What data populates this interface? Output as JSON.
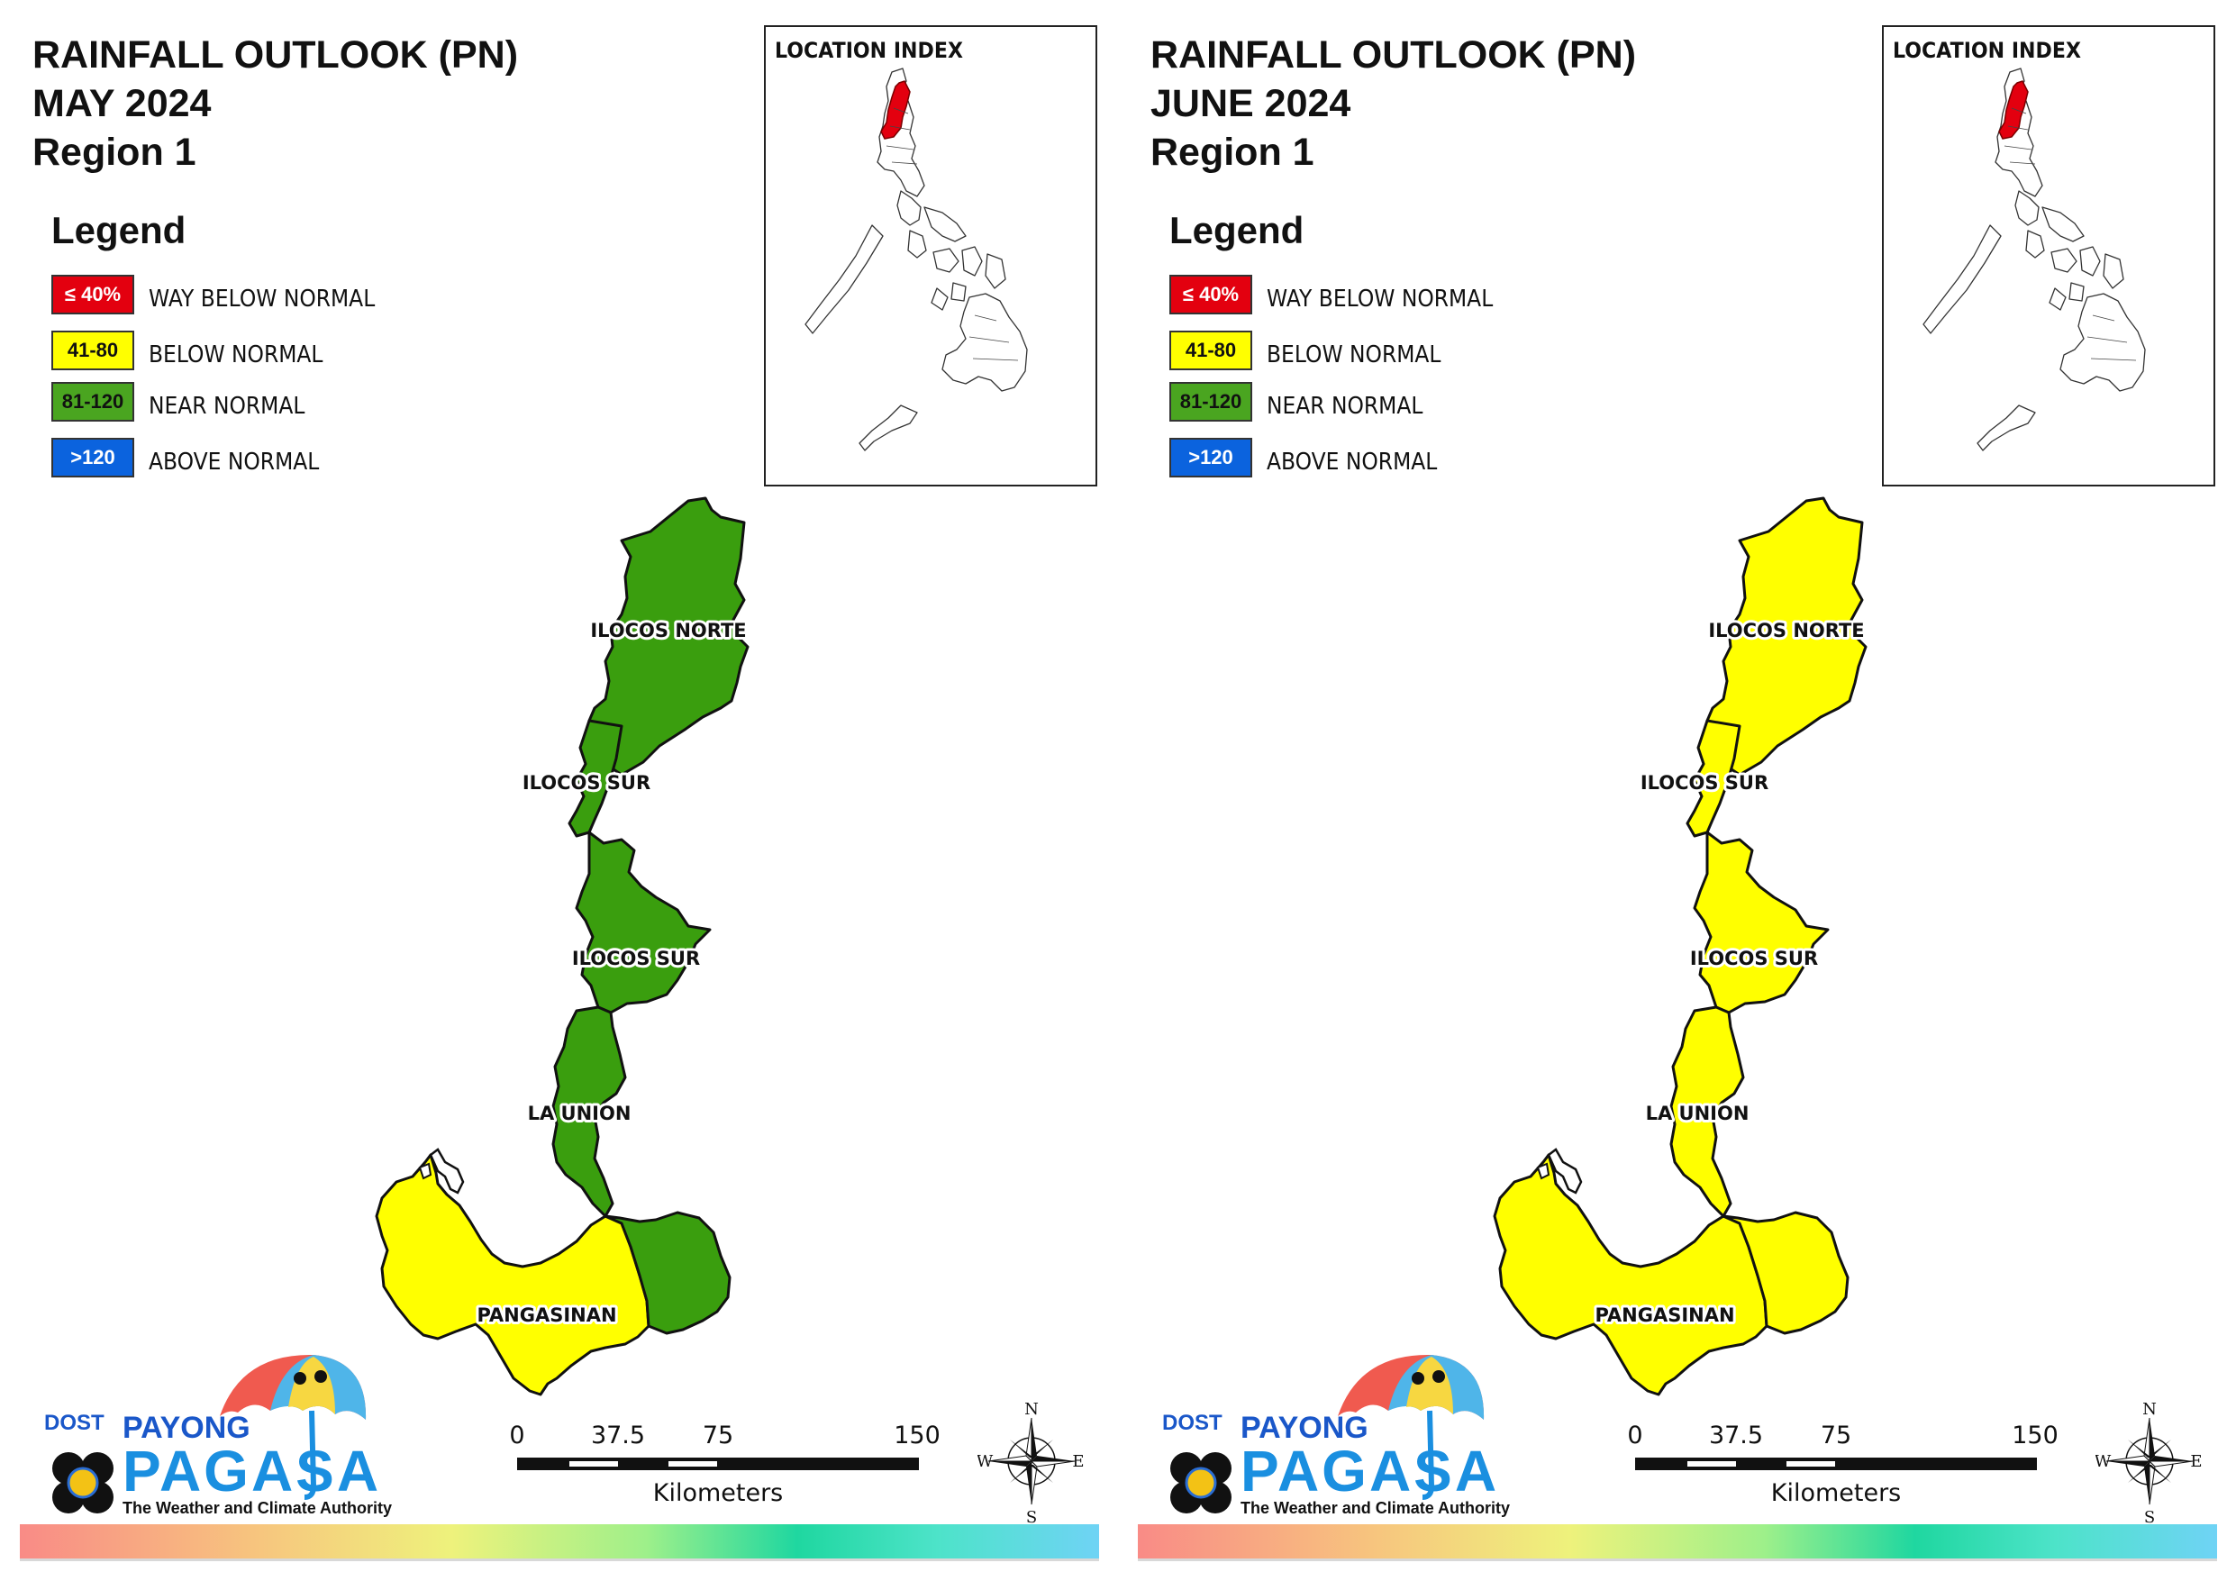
{
  "panels": [
    {
      "title_line1": "RAINFALL OUTLOOK (PN)",
      "title_line2": "MAY 2024",
      "title_line3": "Region 1",
      "legend_heading": "Legend",
      "legend": [
        {
          "swatch": "≤ 40%",
          "label": "WAY BELOW NORMAL",
          "color": "#e3000f",
          "text_color": "#ffffff"
        },
        {
          "swatch": "41-80",
          "label": "BELOW NORMAL",
          "color": "#ffff00",
          "text_color": "#111111"
        },
        {
          "swatch": "81-120",
          "label": "NEAR NORMAL",
          "color": "#4aa520",
          "text_color": "#111111"
        },
        {
          "swatch": ">120",
          "label": "ABOVE NORMAL",
          "color": "#0b63de",
          "text_color": "#ffffff"
        }
      ],
      "inset_title": "LOCATION INDEX",
      "provinces": [
        {
          "label": "ILOCOS NORTE",
          "class": "NEAR NORMAL",
          "color": "#3a9e0e"
        },
        {
          "label": "ILOCOS SUR",
          "class": "NEAR NORMAL",
          "color": "#3a9e0e"
        },
        {
          "label": "ILOCOS SUR",
          "class": "NEAR NORMAL",
          "color": "#3a9e0e"
        },
        {
          "label": "LA UNION",
          "class": "NEAR NORMAL",
          "color": "#3a9e0e"
        },
        {
          "label": "PANGASINAN",
          "class": "BELOW NORMAL",
          "color": "#ffff00"
        }
      ],
      "pangasinan_east_color": "#3a9e0e",
      "scale": {
        "ticks": [
          "0",
          "37.5",
          "75",
          "150"
        ],
        "unit": "Kilometers"
      },
      "compass": {
        "n": "N",
        "s": "S",
        "e": "E",
        "w": "W"
      },
      "logo": {
        "dost": "DOST",
        "payong": "PAYONG",
        "pagasa": "PAGASA",
        "tagline": "The Weather and Climate Authority"
      }
    },
    {
      "title_line1": "RAINFALL OUTLOOK (PN)",
      "title_line2": "JUNE 2024",
      "title_line3": "Region 1",
      "legend_heading": "Legend",
      "legend": [
        {
          "swatch": "≤ 40%",
          "label": "WAY BELOW NORMAL",
          "color": "#e3000f",
          "text_color": "#ffffff"
        },
        {
          "swatch": "41-80",
          "label": "BELOW NORMAL",
          "color": "#ffff00",
          "text_color": "#111111"
        },
        {
          "swatch": "81-120",
          "label": "NEAR NORMAL",
          "color": "#4aa520",
          "text_color": "#111111"
        },
        {
          "swatch": ">120",
          "label": "ABOVE NORMAL",
          "color": "#0b63de",
          "text_color": "#ffffff"
        }
      ],
      "inset_title": "LOCATION INDEX",
      "provinces": [
        {
          "label": "ILOCOS NORTE",
          "class": "BELOW NORMAL",
          "color": "#ffff00"
        },
        {
          "label": "ILOCOS SUR",
          "class": "BELOW NORMAL",
          "color": "#ffff00"
        },
        {
          "label": "ILOCOS SUR",
          "class": "BELOW NORMAL",
          "color": "#ffff00"
        },
        {
          "label": "LA UNION",
          "class": "BELOW NORMAL",
          "color": "#ffff00"
        },
        {
          "label": "PANGASINAN",
          "class": "BELOW NORMAL",
          "color": "#ffff00"
        }
      ],
      "pangasinan_east_color": "#ffff00",
      "scale": {
        "ticks": [
          "0",
          "37.5",
          "75",
          "150"
        ],
        "unit": "Kilometers"
      },
      "compass": {
        "n": "N",
        "s": "S",
        "e": "E",
        "w": "W"
      },
      "logo": {
        "dost": "DOST",
        "payong": "PAYONG",
        "pagasa": "PAGASA",
        "tagline": "The Weather and Climate Authority"
      }
    }
  ]
}
